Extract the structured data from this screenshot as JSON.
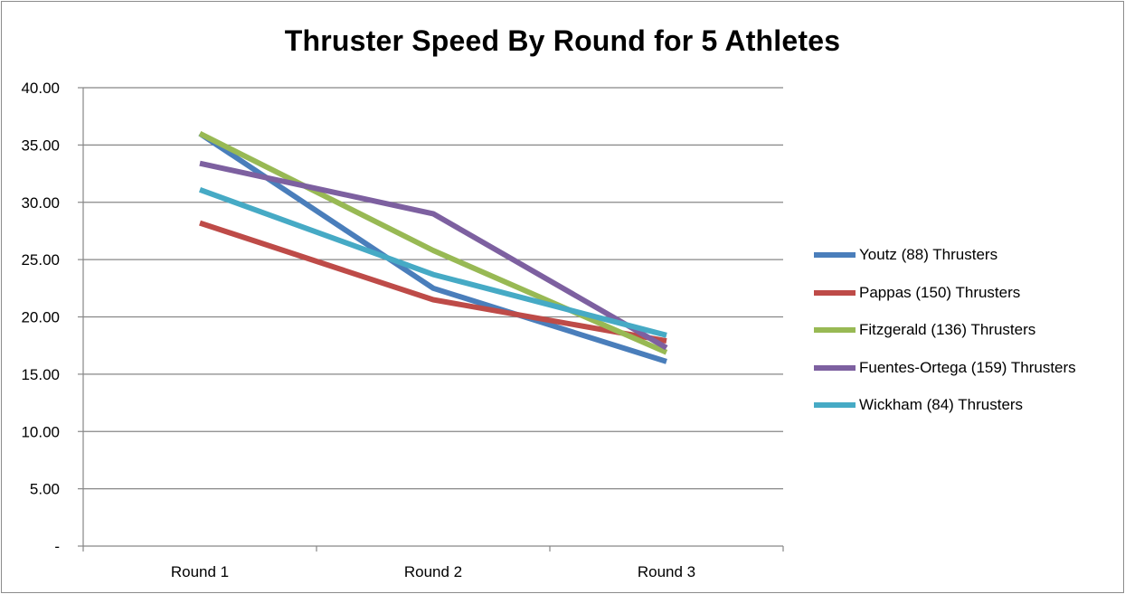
{
  "chart_data": {
    "type": "line",
    "title": "Thruster Speed By Round for 5 Athletes",
    "categories": [
      "Round 1",
      "Round 2",
      "Round 3"
    ],
    "ylim": [
      0,
      40
    ],
    "yticks": [
      0,
      5,
      10,
      15,
      20,
      25,
      30,
      35,
      40
    ],
    "ytick_labels": [
      "-",
      "5.00",
      "10.00",
      "15.00",
      "20.00",
      "25.00",
      "30.00",
      "35.00",
      "40.00"
    ],
    "grid": "horizontal",
    "legend_position": "right",
    "series": [
      {
        "name": "Youtz (88) Thrusters",
        "color": "#4a7ebb",
        "values": [
          36.0,
          22.5,
          16.1
        ]
      },
      {
        "name": "Pappas (150) Thrusters",
        "color": "#be4b48",
        "values": [
          28.2,
          21.5,
          17.9
        ]
      },
      {
        "name": "Fitzgerald (136) Thrusters",
        "color": "#98b954",
        "values": [
          36.0,
          25.8,
          16.9
        ]
      },
      {
        "name": "Fuentes-Ortega (159) Thrusters",
        "color": "#7d60a0",
        "values": [
          33.4,
          29.0,
          17.3
        ]
      },
      {
        "name": "Wickham (84) Thrusters",
        "color": "#46aac5",
        "values": [
          31.1,
          23.7,
          18.4
        ]
      }
    ]
  }
}
